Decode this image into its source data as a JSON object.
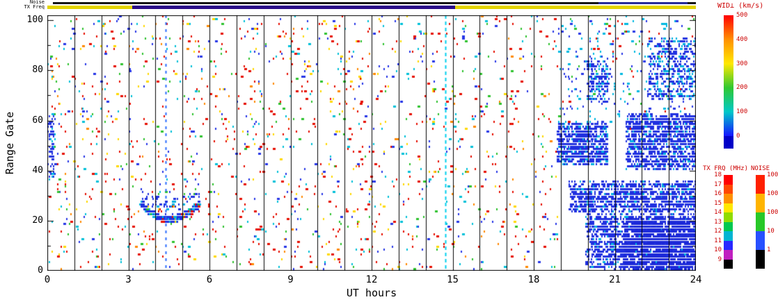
{
  "chart_data": {
    "type": "heatmap",
    "title": "",
    "xlabel": "UT hours",
    "ylabel": "Range Gate",
    "axes": {
      "x": {
        "min": 0,
        "max": 24,
        "major_ticks": [
          0,
          3,
          6,
          9,
          12,
          15,
          18,
          21,
          24
        ],
        "gridline_every_hours": 1
      },
      "y": {
        "min": 0,
        "max": 100,
        "ticks": [
          0,
          20,
          40,
          60,
          80,
          100
        ]
      }
    },
    "strips": {
      "noise": {
        "label": "Noise",
        "segments": [
          {
            "ut0": 0.2,
            "ut1": 20.4,
            "color": "#161616"
          },
          {
            "ut0": 20.4,
            "ut1": 23.7,
            "color": "#262a9a"
          },
          {
            "ut0": 23.7,
            "ut1": 24,
            "color": "#161616"
          }
        ]
      },
      "txfreq": {
        "label": "TX Freq",
        "segments": [
          {
            "ut0": 0,
            "ut1": 3.15,
            "color": "#e3d400"
          },
          {
            "ut0": 3.15,
            "ut1": 15.1,
            "color": "#2a0a88"
          },
          {
            "ut0": 15.1,
            "ut1": 24,
            "color": "#e3d400"
          }
        ]
      }
    },
    "colorbars": {
      "wid": {
        "title": "WID⊥ (km/s)",
        "ticks": [
          "500",
          "400",
          "300",
          "200",
          "100",
          "0"
        ],
        "gradient_stops": [
          "#ff0000",
          "#ff9000",
          "#ffe800",
          "#30c830",
          "#00c8c8",
          "#1414ff"
        ],
        "under_color": "#0000c8"
      },
      "txfrq": {
        "title": "TX FRQ (MHz)",
        "ticks": [
          "18",
          "17",
          "16",
          "15",
          "14",
          "13",
          "12",
          "11",
          "10",
          "9"
        ],
        "block_colors": [
          "#ff0000",
          "#ff4800",
          "#ff9000",
          "#ffe800",
          "#90dc00",
          "#00c850",
          "#00b4d2",
          "#2828ff",
          "#c020c0",
          "#000000"
        ]
      },
      "noise": {
        "title": "NOISE",
        "ticks": [
          "10000",
          "1000",
          "100",
          "10",
          "1"
        ],
        "block_colors": [
          "#ff2000",
          "#ffb400",
          "#28c828",
          "#2850ff",
          "#000000"
        ]
      }
    },
    "scatter": {
      "seed": 20240101,
      "background": {
        "ut": [
          0,
          18.85
        ],
        "gate": [
          0,
          101
        ],
        "n": 1500,
        "colors": [
          [
            "#e60f00",
            0.36
          ],
          [
            "#ff8800",
            0.07
          ],
          [
            "#ffd800",
            0.12
          ],
          [
            "#2ec22e",
            0.12
          ],
          [
            "#00c0d8",
            0.15
          ],
          [
            "#2636e6",
            0.18
          ]
        ]
      },
      "right_sparse": {
        "ut": [
          18.85,
          24
        ],
        "gate": [
          55,
          101
        ],
        "n": 300,
        "colors": [
          [
            "#00b8e0",
            0.4
          ],
          [
            "#2636e6",
            0.38
          ],
          [
            "#2ec22e",
            0.1
          ],
          [
            "#e60f00",
            0.12
          ]
        ]
      },
      "blobs": [
        {
          "ut": [
            0,
            0.25
          ],
          "gate": [
            36,
            62
          ],
          "n": 70,
          "colors": [
            [
              "#2233e0",
              0.8
            ],
            [
              "#00b8e0",
              0.2
            ]
          ]
        },
        {
          "ut": [
            18.85,
            20.7
          ],
          "gate": [
            42,
            58
          ],
          "n": 800,
          "colors": [
            [
              "#2030e0",
              0.85
            ],
            [
              "#00b0e0",
              0.15
            ]
          ]
        },
        {
          "ut": [
            19.3,
            24
          ],
          "gate": [
            23,
            35
          ],
          "n": 1100,
          "colors": [
            [
              "#2030e0",
              0.9
            ],
            [
              "#00b0e0",
              0.1
            ]
          ]
        },
        {
          "ut": [
            19.9,
            24
          ],
          "gate": [
            0,
            22
          ],
          "n": 1500,
          "colors": [
            [
              "#2030e0",
              0.92
            ],
            [
              "#00b0e0",
              0.08
            ]
          ]
        },
        {
          "ut": [
            21.3,
            24
          ],
          "gate": [
            0,
            20
          ],
          "n": 1200,
          "colors": [
            [
              "#1b28d8",
              1.0
            ]
          ]
        },
        {
          "ut": [
            21.4,
            24
          ],
          "gate": [
            40,
            62
          ],
          "n": 1200,
          "colors": [
            [
              "#2030e0",
              0.9
            ],
            [
              "#00b0e0",
              0.1
            ]
          ]
        },
        {
          "ut": [
            22.2,
            23.95
          ],
          "gate": [
            68,
            92
          ],
          "n": 420,
          "colors": [
            [
              "#2030e0",
              0.75
            ],
            [
              "#00b0e0",
              0.25
            ]
          ]
        },
        {
          "ut": [
            19.95,
            20.75
          ],
          "gate": [
            66,
            84
          ],
          "n": 170,
          "colors": [
            [
              "#2030e0",
              0.8
            ],
            [
              "#00b0e0",
              0.2
            ]
          ]
        }
      ],
      "arc": {
        "ut_center": 4.5,
        "ut_halfwidth": 1.1,
        "gate_base": 20,
        "gate_rise": 6.5,
        "gate_thickness": 2.2,
        "n": 520,
        "colors": [
          [
            "#2030e0",
            0.66
          ],
          [
            "#00b0e0",
            0.16
          ],
          [
            "#2ec22e",
            0.08
          ],
          [
            "#ffd800",
            0.04
          ],
          [
            "#e60f00",
            0.06
          ]
        ]
      },
      "vlines": [
        {
          "ut": 4.38,
          "color": "#2a6cff",
          "width": 2,
          "dash": [
            4,
            6
          ]
        },
        {
          "ut": 14.72,
          "color": "#00cfee",
          "width": 2,
          "dash": [
            5,
            4
          ]
        }
      ]
    }
  }
}
